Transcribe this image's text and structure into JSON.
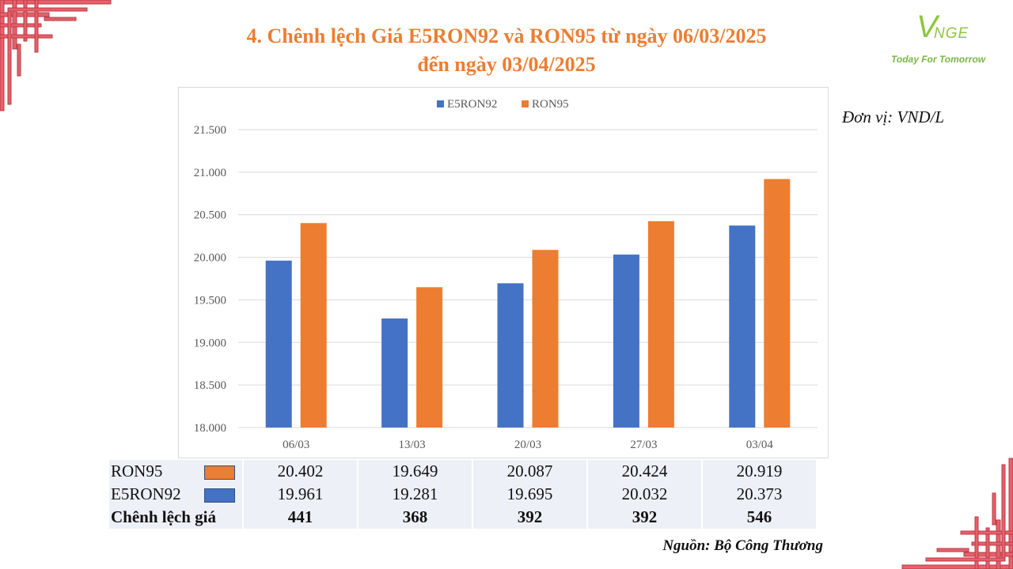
{
  "title_line1": "4. Chênh lệch Giá E5RON92 và RON95 từ ngày 06/03/2025",
  "title_line2": "đến ngày 03/04/2025",
  "logo": {
    "mark": "V",
    "text": "NGE",
    "slogan": "Today For Tomorrow"
  },
  "unit_label": "Đơn vị: VND/L",
  "source": "Nguồn: Bộ Công Thương",
  "colors": {
    "e5ron92": "#4472C4",
    "ron95": "#ED7D31",
    "title": "#ED7D31",
    "ornament": "#E8606A"
  },
  "chart_data": {
    "type": "bar",
    "categories": [
      "06/03",
      "13/03",
      "20/03",
      "27/03",
      "03/04"
    ],
    "series": [
      {
        "name": "E5RON92",
        "values": [
          19961,
          19281,
          19695,
          20032,
          20373
        ],
        "color": "#4472C4"
      },
      {
        "name": "RON95",
        "values": [
          20402,
          19649,
          20087,
          20424,
          20919
        ],
        "color": "#ED7D31"
      }
    ],
    "ylim": [
      18000,
      21500
    ],
    "yticks": [
      "18.000",
      "18.500",
      "19.000",
      "19.500",
      "20.000",
      "20.500",
      "21.000",
      "21.500"
    ],
    "ytick_values": [
      18000,
      18500,
      19000,
      19500,
      20000,
      20500,
      21000,
      21500
    ],
    "legend_position": "top",
    "grid": true
  },
  "table": {
    "rows": [
      {
        "label": "RON95",
        "values": [
          "20.402",
          "19.649",
          "20.087",
          "20.424",
          "20.919"
        ]
      },
      {
        "label": "E5RON92",
        "values": [
          "19.961",
          "19.281",
          "19.695",
          "20.032",
          "20.373"
        ]
      },
      {
        "label": "Chênh lệch giá",
        "values": [
          "441",
          "368",
          "392",
          "392",
          "546"
        ]
      }
    ]
  }
}
